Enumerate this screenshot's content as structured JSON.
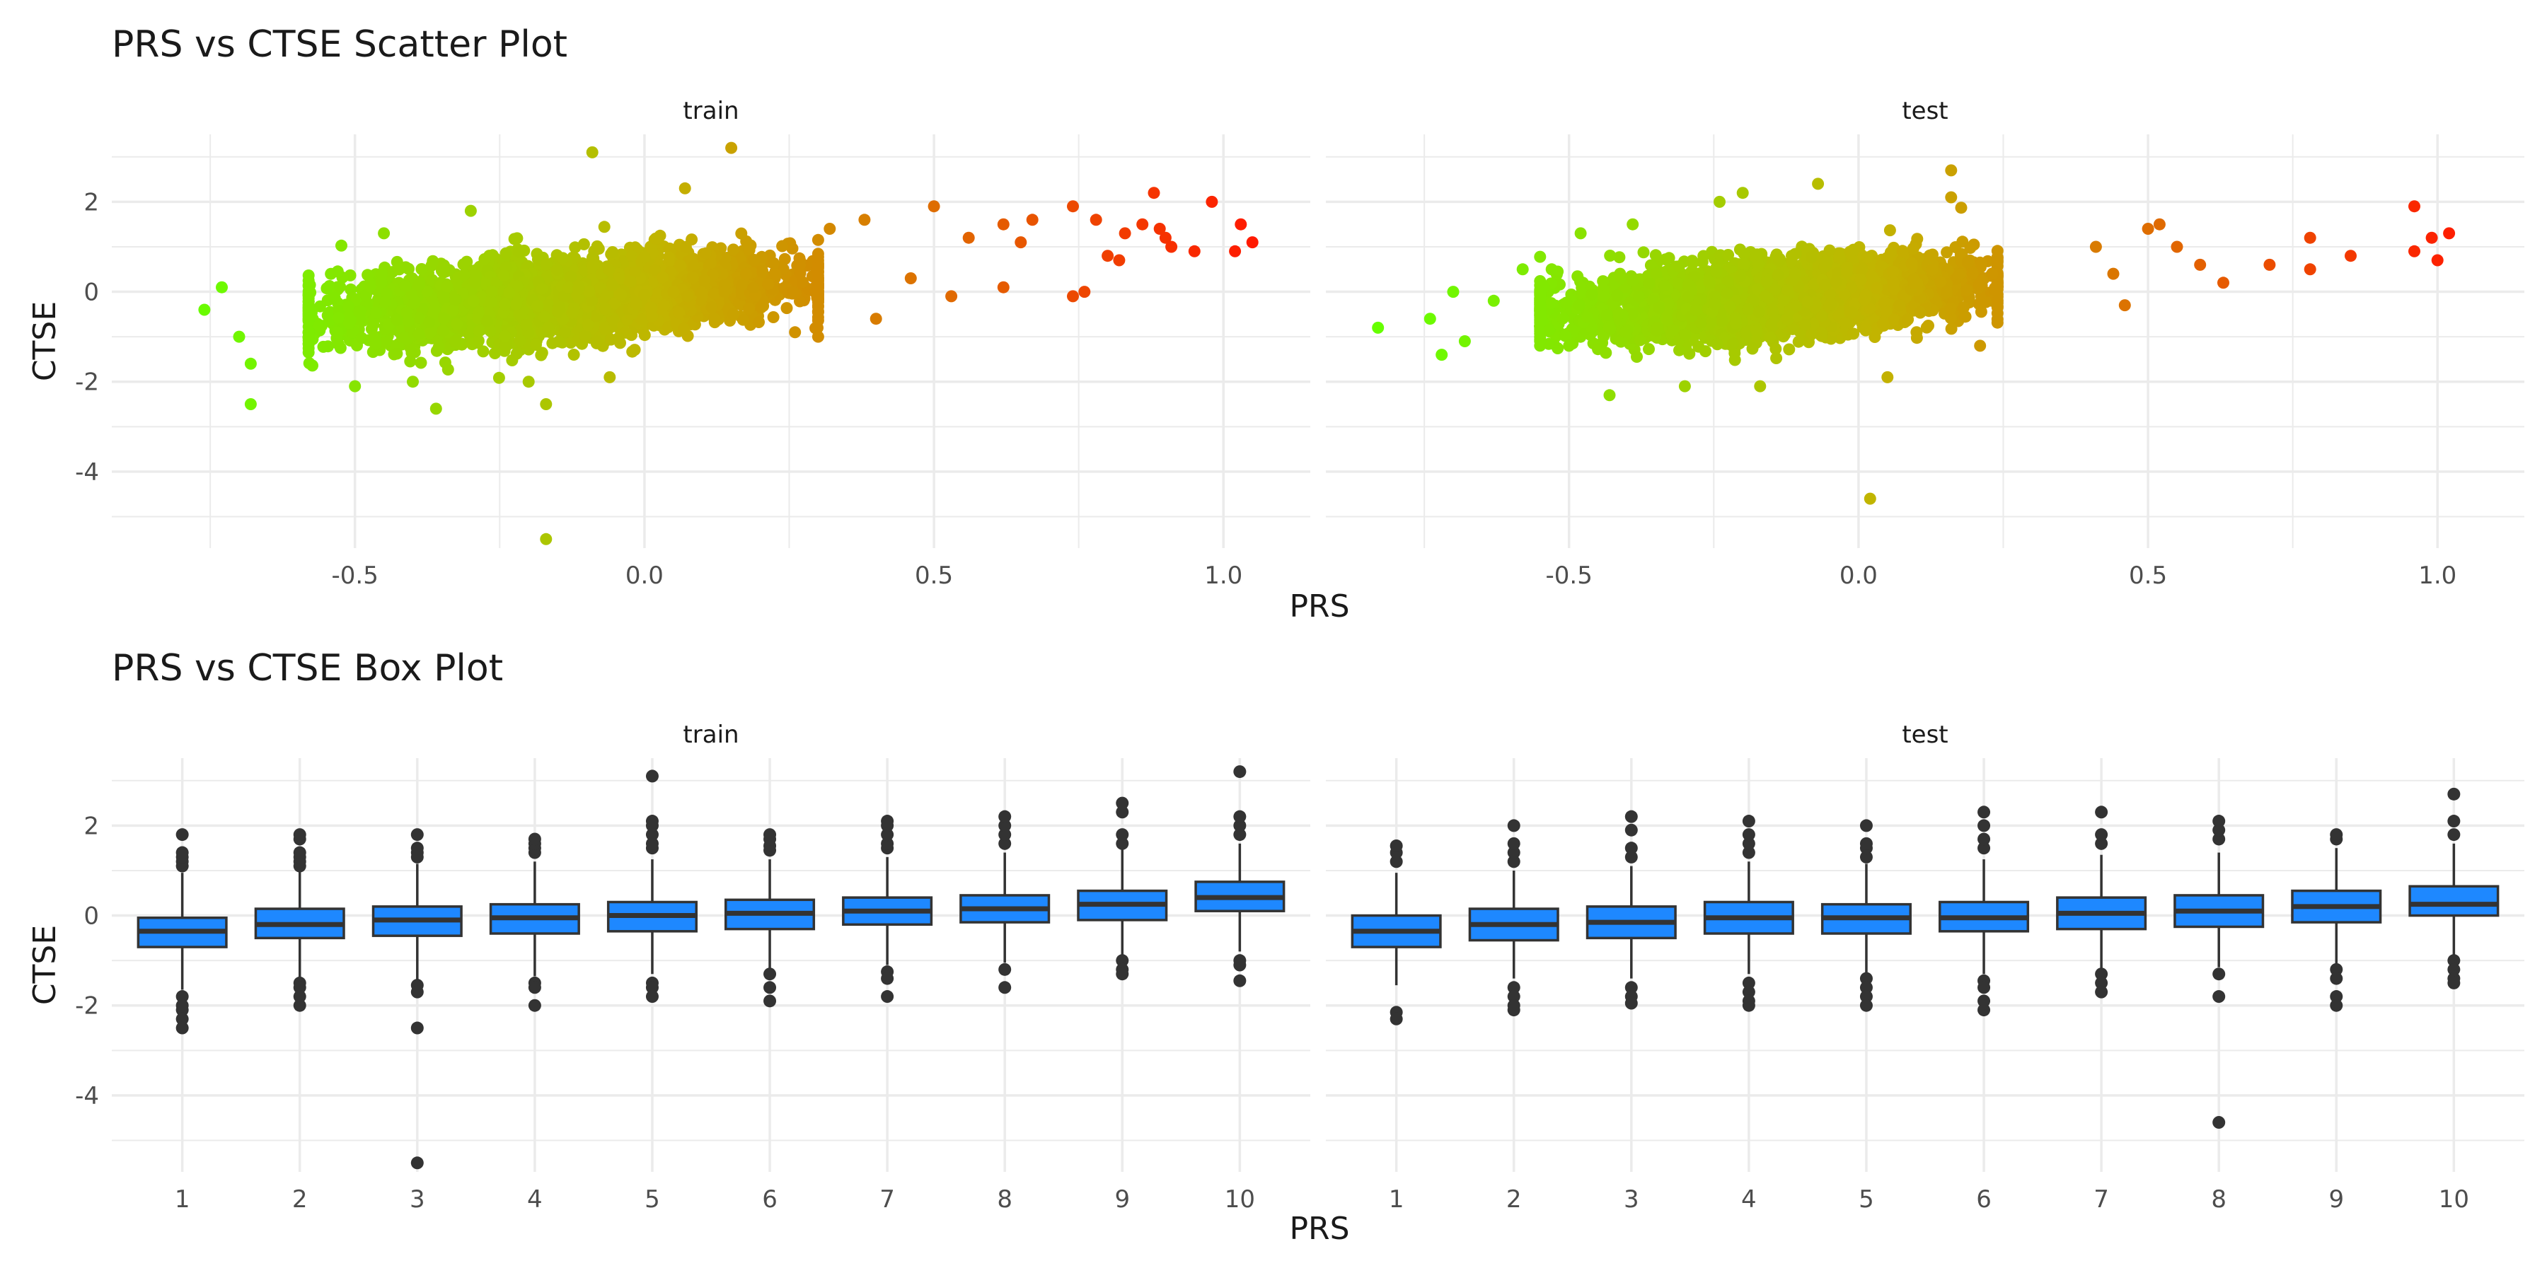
{
  "figure": {
    "scatter_title": "PRS vs CTSE Scatter Plot",
    "box_title": "PRS vs CTSE Box Plot"
  },
  "colors": {
    "gradient_low": "#66ff00",
    "gradient_mid": "#c2b400",
    "gradient_high": "#ff1a00",
    "box_fill": "#1e88ff",
    "box_line": "#333333",
    "grid": "#ebebeb",
    "text": "#1a1a1a",
    "tick_text": "#4d4d4d"
  },
  "chart_data": [
    {
      "type": "scatter",
      "title": "PRS vs CTSE Scatter Plot",
      "xlabel": "PRS",
      "ylabel": "CTSE",
      "color_encoding": "green to red gradient by PRS",
      "grid": true,
      "y_ticks": [
        -4,
        -2,
        0,
        2
      ],
      "ylim": [
        -5.7,
        3.5
      ],
      "panels": [
        {
          "name": "train",
          "xlim": [
            -0.92,
            1.15
          ],
          "x_ticks": [
            -0.5,
            0.0,
            0.5,
            1.0
          ],
          "x_tick_labels": [
            "-0.5",
            "0.0",
            "0.5",
            "1.0"
          ],
          "bulk": {
            "x_min": -0.58,
            "x_max": 0.3,
            "y_center": 0.0,
            "y_halfwidth": 1.0
          },
          "highlighted_points": [
            {
              "x": -0.76,
              "y": -0.4
            },
            {
              "x": -0.73,
              "y": 0.1
            },
            {
              "x": -0.7,
              "y": -1.0
            },
            {
              "x": -0.68,
              "y": -1.6
            },
            {
              "x": -0.68,
              "y": -2.5
            },
            {
              "x": -0.45,
              "y": 1.3
            },
            {
              "x": -0.5,
              "y": -2.1
            },
            {
              "x": -0.4,
              "y": -2.0
            },
            {
              "x": -0.36,
              "y": -2.6
            },
            {
              "x": -0.3,
              "y": 1.8
            },
            {
              "x": -0.2,
              "y": -2.0
            },
            {
              "x": -0.17,
              "y": -2.5
            },
            {
              "x": -0.09,
              "y": 3.1
            },
            {
              "x": 0.07,
              "y": 2.3
            },
            {
              "x": 0.15,
              "y": 3.2
            },
            {
              "x": -0.17,
              "y": -5.5
            },
            {
              "x": -0.06,
              "y": -1.9
            },
            {
              "x": 0.26,
              "y": -0.9
            },
            {
              "x": 0.32,
              "y": 1.4
            },
            {
              "x": 0.38,
              "y": 1.6
            },
            {
              "x": 0.4,
              "y": -0.6
            },
            {
              "x": 0.46,
              "y": 0.3
            },
            {
              "x": 0.5,
              "y": 1.9
            },
            {
              "x": 0.53,
              "y": -0.1
            },
            {
              "x": 0.56,
              "y": 1.2
            },
            {
              "x": 0.62,
              "y": 1.5
            },
            {
              "x": 0.62,
              "y": 0.1
            },
            {
              "x": 0.65,
              "y": 1.1
            },
            {
              "x": 0.67,
              "y": 1.6
            },
            {
              "x": 0.74,
              "y": 1.9
            },
            {
              "x": 0.74,
              "y": -0.1
            },
            {
              "x": 0.76,
              "y": 0.0
            },
            {
              "x": 0.78,
              "y": 1.6
            },
            {
              "x": 0.8,
              "y": 0.8
            },
            {
              "x": 0.82,
              "y": 0.7
            },
            {
              "x": 0.83,
              "y": 1.3
            },
            {
              "x": 0.86,
              "y": 1.5
            },
            {
              "x": 0.88,
              "y": 2.2
            },
            {
              "x": 0.89,
              "y": 1.4
            },
            {
              "x": 0.9,
              "y": 1.2
            },
            {
              "x": 0.91,
              "y": 1.0
            },
            {
              "x": 0.95,
              "y": 0.9
            },
            {
              "x": 0.98,
              "y": 2.0
            },
            {
              "x": 1.02,
              "y": 0.9
            },
            {
              "x": 1.03,
              "y": 1.5
            },
            {
              "x": 1.05,
              "y": 1.1
            }
          ]
        },
        {
          "name": "test",
          "xlim": [
            -0.92,
            1.15
          ],
          "x_ticks": [
            -0.5,
            0.0,
            0.5,
            1.0
          ],
          "x_tick_labels": [
            "-0.5",
            "0.0",
            "0.5",
            "1.0"
          ],
          "bulk": {
            "x_min": -0.55,
            "x_max": 0.24,
            "y_center": 0.0,
            "y_halfwidth": 0.95
          },
          "highlighted_points": [
            {
              "x": -0.83,
              "y": -0.8
            },
            {
              "x": -0.74,
              "y": -0.6
            },
            {
              "x": -0.72,
              "y": -1.4
            },
            {
              "x": -0.7,
              "y": 0.0
            },
            {
              "x": -0.68,
              "y": -1.1
            },
            {
              "x": -0.63,
              "y": -0.2
            },
            {
              "x": -0.58,
              "y": 0.5
            },
            {
              "x": -0.53,
              "y": 0.5
            },
            {
              "x": -0.5,
              "y": -1.2
            },
            {
              "x": -0.48,
              "y": 1.3
            },
            {
              "x": -0.43,
              "y": -2.3
            },
            {
              "x": -0.39,
              "y": 1.5
            },
            {
              "x": -0.3,
              "y": -2.1
            },
            {
              "x": -0.24,
              "y": 2.0
            },
            {
              "x": -0.2,
              "y": 2.2
            },
            {
              "x": -0.17,
              "y": -2.1
            },
            {
              "x": -0.07,
              "y": 2.4
            },
            {
              "x": 0.02,
              "y": -4.6
            },
            {
              "x": 0.05,
              "y": -1.9
            },
            {
              "x": 0.16,
              "y": 2.7
            },
            {
              "x": 0.16,
              "y": 2.1
            },
            {
              "x": 0.21,
              "y": -1.2
            },
            {
              "x": 0.41,
              "y": 1.0
            },
            {
              "x": 0.44,
              "y": 0.4
            },
            {
              "x": 0.46,
              "y": -0.3
            },
            {
              "x": 0.5,
              "y": 1.4
            },
            {
              "x": 0.52,
              "y": 1.5
            },
            {
              "x": 0.55,
              "y": 1.0
            },
            {
              "x": 0.59,
              "y": 0.6
            },
            {
              "x": 0.63,
              "y": 0.2
            },
            {
              "x": 0.71,
              "y": 0.6
            },
            {
              "x": 0.78,
              "y": 1.2
            },
            {
              "x": 0.78,
              "y": 0.5
            },
            {
              "x": 0.85,
              "y": 0.8
            },
            {
              "x": 0.96,
              "y": 1.9
            },
            {
              "x": 0.96,
              "y": 0.9
            },
            {
              "x": 0.99,
              "y": 1.2
            },
            {
              "x": 1.0,
              "y": 0.7
            },
            {
              "x": 1.02,
              "y": 1.3
            }
          ]
        }
      ]
    },
    {
      "type": "box",
      "title": "PRS vs CTSE Box Plot",
      "xlabel": "PRS",
      "ylabel": "CTSE",
      "categories": [
        "1",
        "2",
        "3",
        "4",
        "5",
        "6",
        "7",
        "8",
        "9",
        "10"
      ],
      "grid": true,
      "y_ticks": [
        -4,
        -2,
        0,
        2
      ],
      "ylim": [
        -5.7,
        3.5
      ],
      "panels": [
        {
          "name": "train",
          "boxes": [
            {
              "q1": -0.7,
              "median": -0.35,
              "q3": -0.05,
              "whisker_low": -1.65,
              "whisker_high": 0.95,
              "outliers": [
                1.1,
                1.2,
                1.3,
                1.4,
                1.8,
                -1.8,
                -2.0,
                -2.1,
                -2.3,
                -2.5
              ]
            },
            {
              "q1": -0.5,
              "median": -0.2,
              "q3": 0.15,
              "whisker_low": -1.4,
              "whisker_high": 1.0,
              "outliers": [
                1.1,
                1.2,
                1.3,
                1.4,
                1.7,
                1.8,
                -1.5,
                -1.6,
                -1.8,
                -2.0
              ]
            },
            {
              "q1": -0.45,
              "median": -0.1,
              "q3": 0.2,
              "whisker_low": -1.45,
              "whisker_high": 1.15,
              "outliers": [
                1.3,
                1.4,
                1.5,
                1.8,
                -1.55,
                -1.7,
                -2.5,
                -5.5
              ]
            },
            {
              "q1": -0.4,
              "median": -0.05,
              "q3": 0.25,
              "whisker_low": -1.35,
              "whisker_high": 1.2,
              "outliers": [
                1.4,
                1.5,
                1.6,
                1.7,
                -1.5,
                -1.6,
                -2.0
              ]
            },
            {
              "q1": -0.35,
              "median": 0.0,
              "q3": 0.3,
              "whisker_low": -1.3,
              "whisker_high": 1.25,
              "outliers": [
                1.5,
                1.6,
                1.8,
                2.0,
                2.1,
                3.1,
                -1.5,
                -1.6,
                -1.8
              ]
            },
            {
              "q1": -0.3,
              "median": 0.05,
              "q3": 0.35,
              "whisker_low": -1.2,
              "whisker_high": 1.25,
              "outliers": [
                1.45,
                1.55,
                1.7,
                1.8,
                -1.3,
                -1.6,
                -1.9
              ]
            },
            {
              "q1": -0.2,
              "median": 0.1,
              "q3": 0.4,
              "whisker_low": -1.1,
              "whisker_high": 1.3,
              "outliers": [
                1.5,
                1.6,
                1.8,
                2.0,
                2.1,
                -1.25,
                -1.4,
                -1.8
              ]
            },
            {
              "q1": -0.15,
              "median": 0.15,
              "q3": 0.45,
              "whisker_low": -1.05,
              "whisker_high": 1.4,
              "outliers": [
                1.6,
                1.8,
                2.0,
                2.2,
                -1.2,
                -1.6
              ]
            },
            {
              "q1": -0.1,
              "median": 0.25,
              "q3": 0.55,
              "whisker_low": -0.95,
              "whisker_high": 1.5,
              "outliers": [
                1.6,
                1.8,
                2.3,
                2.5,
                -1.0,
                -1.2,
                -1.3
              ]
            },
            {
              "q1": 0.1,
              "median": 0.4,
              "q3": 0.75,
              "whisker_low": -0.8,
              "whisker_high": 1.6,
              "outliers": [
                1.8,
                2.0,
                2.2,
                3.2,
                -1.0,
                -1.1,
                -1.45
              ]
            }
          ]
        },
        {
          "name": "test",
          "boxes": [
            {
              "q1": -0.7,
              "median": -0.35,
              "q3": 0.0,
              "whisker_low": -1.55,
              "whisker_high": 0.95,
              "outliers": [
                1.2,
                1.4,
                1.55,
                -2.15,
                -2.3
              ]
            },
            {
              "q1": -0.55,
              "median": -0.2,
              "q3": 0.15,
              "whisker_low": -1.4,
              "whisker_high": 1.0,
              "outliers": [
                1.2,
                1.4,
                1.6,
                2.0,
                -1.6,
                -1.8,
                -2.0,
                -2.1
              ]
            },
            {
              "q1": -0.5,
              "median": -0.15,
              "q3": 0.2,
              "whisker_low": -1.4,
              "whisker_high": 1.1,
              "outliers": [
                1.3,
                1.5,
                1.9,
                2.2,
                -1.6,
                -1.8,
                -1.95
              ]
            },
            {
              "q1": -0.4,
              "median": -0.05,
              "q3": 0.3,
              "whisker_low": -1.3,
              "whisker_high": 1.2,
              "outliers": [
                1.4,
                1.6,
                1.8,
                2.1,
                -1.5,
                -1.7,
                -1.9,
                -2.0
              ]
            },
            {
              "q1": -0.4,
              "median": -0.05,
              "q3": 0.25,
              "whisker_low": -1.3,
              "whisker_high": 1.15,
              "outliers": [
                1.3,
                1.5,
                1.6,
                2.0,
                -1.4,
                -1.6,
                -1.8,
                -2.0
              ]
            },
            {
              "q1": -0.35,
              "median": -0.05,
              "q3": 0.3,
              "whisker_low": -1.3,
              "whisker_high": 1.25,
              "outliers": [
                1.5,
                1.7,
                2.0,
                2.3,
                -1.45,
                -1.6,
                -1.9,
                -2.1
              ]
            },
            {
              "q1": -0.3,
              "median": 0.05,
              "q3": 0.4,
              "whisker_low": -1.2,
              "whisker_high": 1.35,
              "outliers": [
                1.6,
                1.8,
                2.3,
                -1.3,
                -1.5,
                -1.7
              ]
            },
            {
              "q1": -0.25,
              "median": 0.1,
              "q3": 0.45,
              "whisker_low": -1.15,
              "whisker_high": 1.4,
              "outliers": [
                1.7,
                1.9,
                2.1,
                -1.3,
                -1.8,
                -4.6
              ]
            },
            {
              "q1": -0.15,
              "median": 0.2,
              "q3": 0.55,
              "whisker_low": -1.1,
              "whisker_high": 1.5,
              "outliers": [
                1.7,
                1.8,
                -1.2,
                -1.4,
                -1.8,
                -2.0
              ]
            },
            {
              "q1": 0.0,
              "median": 0.25,
              "q3": 0.65,
              "whisker_low": -0.9,
              "whisker_high": 1.6,
              "outliers": [
                1.8,
                2.1,
                2.7,
                -1.0,
                -1.2,
                -1.4,
                -1.5
              ]
            }
          ]
        }
      ]
    }
  ]
}
